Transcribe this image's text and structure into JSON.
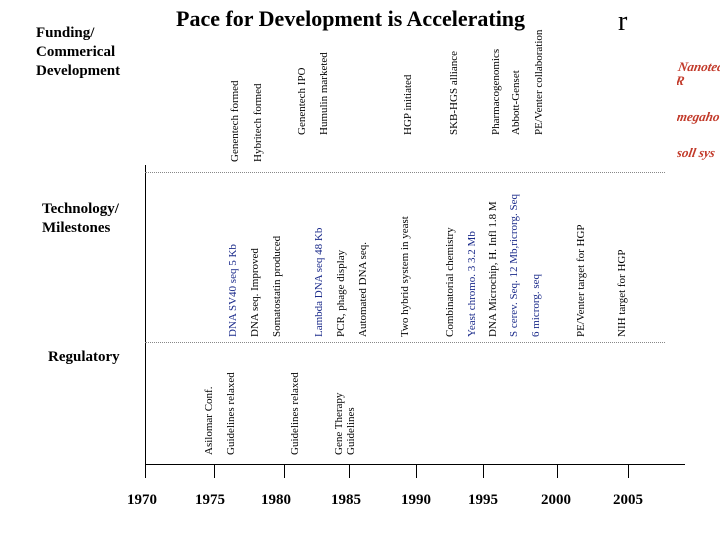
{
  "title": "Pace for Development is Accelerating",
  "corner_mark": "r",
  "sections": {
    "funding": "Funding/\nCommerical\nDevelopment",
    "technology": "Technology/\nMilestones",
    "regulatory": "Regulatory"
  },
  "years": [
    "1970",
    "1975",
    "1980",
    "1985",
    "1990",
    "1995",
    "2000",
    "2005"
  ],
  "funding_events": [
    "Genentech formed",
    "Hybritech formed",
    "Genentech IPO",
    "Humulin marketed",
    "HGP initiated",
    "SKB-HGS alliance",
    "Pharmacogenomics",
    "Abbott-Genset",
    "PE/Venter collaboration"
  ],
  "technology_events": [
    "DNA SV40 seq 5 Kb",
    "DNA seq. Improved",
    "Somatostatin produced",
    "Lambda DNA seq 48 Kb",
    "PCR, phage display",
    "Automated DNA seq.",
    "Two hybrid system in yeast",
    "Combinatorial chemistry",
    "Yeast chromo. 3   3.2 Mb",
    "DNA Microchip,  H. Infl 1.8 M",
    "S cerev. Seq. 12 Mb,ricrorg. Seq",
    "6 microrg. seq",
    "PE/Venter target for HGP",
    "NIH target for HGP"
  ],
  "regulatory_events": [
    "Asilomar Conf.",
    "Guidelines relaxed",
    "Guidelines relaxed",
    "Gene Therapy",
    "Guidelines"
  ],
  "side_image_text": [
    "Nanotech R",
    "megaho",
    "soll sys"
  ],
  "colors": {
    "accent_blue": "#1a2a8a",
    "side_red": "#c23a2a"
  }
}
